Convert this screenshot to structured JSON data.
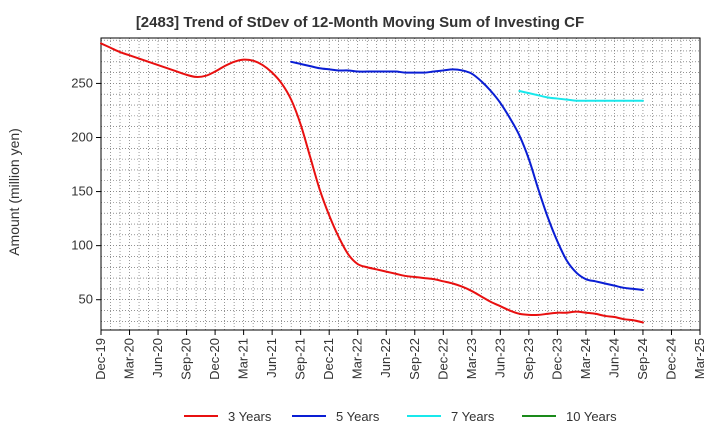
{
  "chart_data": {
    "type": "line",
    "title": "[2483]  Trend of StDev of 12-Month Moving Sum of Investing CF",
    "xlabel": "",
    "ylabel": "Amount (million yen)",
    "x_ticks": [
      "Dec-19",
      "Mar-20",
      "Jun-20",
      "Sep-20",
      "Dec-20",
      "Mar-21",
      "Jun-21",
      "Sep-21",
      "Dec-21",
      "Mar-22",
      "Jun-22",
      "Sep-22",
      "Dec-22",
      "Mar-23",
      "Jun-23",
      "Sep-23",
      "Dec-23",
      "Mar-24",
      "Jun-24",
      "Sep-24",
      "Dec-24",
      "Mar-25"
    ],
    "y_ticks": [
      50,
      100,
      150,
      200,
      250
    ],
    "ylim": [
      22,
      292
    ],
    "grid": true,
    "legend_position": "bottom",
    "series": [
      {
        "name": "3 Years",
        "color": "#e81010",
        "x": [
          "Dec-19",
          "Jan-20",
          "Feb-20",
          "Mar-20",
          "Apr-20",
          "May-20",
          "Jun-20",
          "Jul-20",
          "Aug-20",
          "Sep-20",
          "Oct-20",
          "Nov-20",
          "Dec-20",
          "Jan-21",
          "Feb-21",
          "Mar-21",
          "Apr-21",
          "May-21",
          "Jun-21",
          "Jul-21",
          "Aug-21",
          "Sep-21",
          "Oct-21",
          "Nov-21",
          "Dec-21",
          "Jan-22",
          "Feb-22",
          "Mar-22",
          "Apr-22",
          "May-22",
          "Jun-22",
          "Jul-22",
          "Aug-22",
          "Sep-22",
          "Oct-22",
          "Nov-22",
          "Dec-22",
          "Jan-23",
          "Feb-23",
          "Mar-23",
          "Apr-23",
          "May-23",
          "Jun-23",
          "Jul-23",
          "Aug-23",
          "Sep-23",
          "Oct-23",
          "Nov-23",
          "Dec-23",
          "Jan-24",
          "Feb-24",
          "Mar-24",
          "Apr-24",
          "May-24",
          "Jun-24",
          "Jul-24",
          "Aug-24",
          "Sep-24"
        ],
        "values": [
          287,
          283,
          279,
          276,
          273,
          270,
          267,
          264,
          261,
          258,
          256,
          257,
          261,
          266,
          270,
          272,
          271,
          267,
          260,
          250,
          235,
          212,
          182,
          152,
          128,
          108,
          92,
          83,
          80,
          78,
          76,
          74,
          72,
          71,
          70,
          69,
          67,
          65,
          62,
          58,
          53,
          48,
          44,
          40,
          37,
          36,
          36,
          37,
          38,
          38,
          39,
          38,
          37,
          35,
          34,
          32,
          31,
          29
        ]
      },
      {
        "name": "5 Years",
        "color": "#0a1ed4",
        "x": [
          "Aug-21",
          "Sep-21",
          "Oct-21",
          "Nov-21",
          "Dec-21",
          "Jan-22",
          "Feb-22",
          "Mar-22",
          "Apr-22",
          "May-22",
          "Jun-22",
          "Jul-22",
          "Aug-22",
          "Sep-22",
          "Oct-22",
          "Nov-22",
          "Dec-22",
          "Jan-23",
          "Feb-23",
          "Mar-23",
          "Apr-23",
          "May-23",
          "Jun-23",
          "Jul-23",
          "Aug-23",
          "Sep-23",
          "Oct-23",
          "Nov-23",
          "Dec-23",
          "Jan-24",
          "Feb-24",
          "Mar-24",
          "Apr-24",
          "May-24",
          "Jun-24",
          "Jul-24",
          "Aug-24",
          "Sep-24"
        ],
        "values": [
          270,
          268,
          266,
          264,
          263,
          262,
          262,
          261,
          261,
          261,
          261,
          261,
          260,
          260,
          260,
          261,
          262,
          263,
          262,
          259,
          252,
          243,
          232,
          218,
          202,
          180,
          152,
          126,
          104,
          86,
          75,
          69,
          67,
          65,
          63,
          61,
          60,
          59
        ]
      },
      {
        "name": "7 Years",
        "color": "#18e8ec",
        "x": [
          "Aug-23",
          "Sep-23",
          "Oct-23",
          "Nov-23",
          "Dec-23",
          "Jan-24",
          "Feb-24",
          "Mar-24",
          "Apr-24",
          "May-24",
          "Jun-24",
          "Jul-24",
          "Aug-24",
          "Sep-24"
        ],
        "values": [
          243,
          241,
          239,
          237,
          236,
          235,
          234,
          234,
          234,
          234,
          234,
          234,
          234,
          234
        ]
      },
      {
        "name": "10 Years",
        "color": "#1a8a1a",
        "x": [],
        "values": []
      }
    ]
  }
}
